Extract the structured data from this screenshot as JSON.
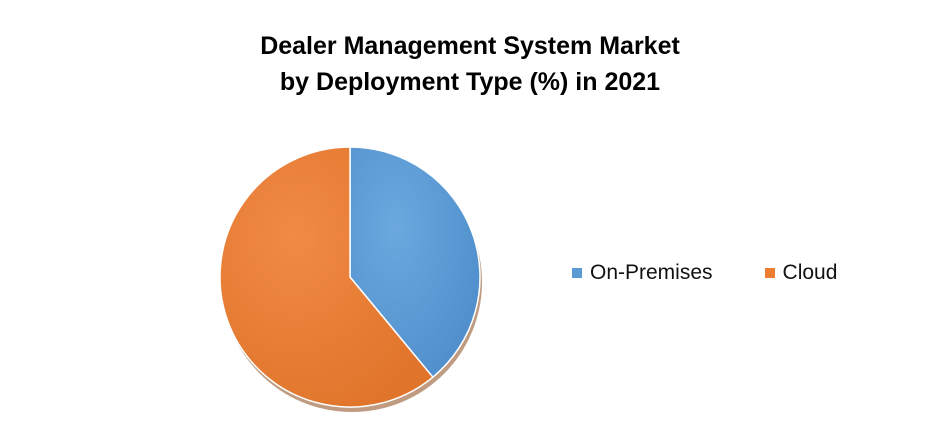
{
  "chart_data": {
    "type": "pie",
    "title_line1": "Dealer Management System Market",
    "title_line2": "by Deployment Type (%) in 2021",
    "categories": [
      "On-Premises",
      "Cloud"
    ],
    "values": [
      39,
      61
    ],
    "colors": [
      "#5b9bd5",
      "#ed7d31"
    ],
    "legend_position": "right"
  }
}
